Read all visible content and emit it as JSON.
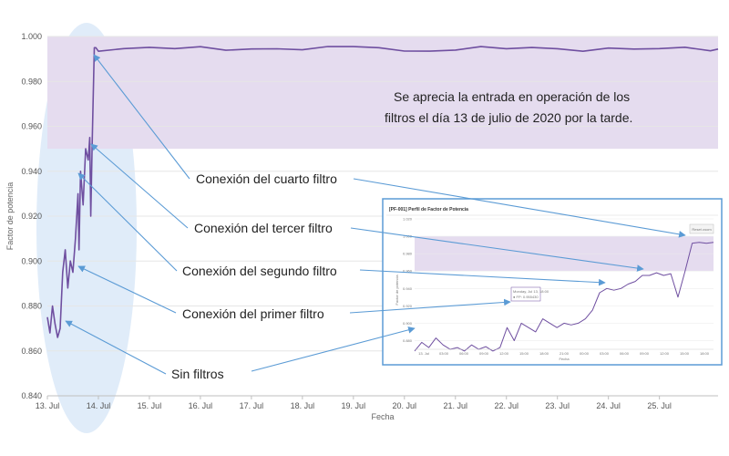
{
  "chart_data": [
    {
      "type": "line",
      "title": "",
      "xlabel": "Fecha",
      "ylabel": "Factor de potencia",
      "xlim": [
        13.0,
        26.15
      ],
      "ylim": [
        0.84,
        1.0
      ],
      "grid": true,
      "x_ticks": [
        13,
        14,
        15,
        16,
        17,
        18,
        19,
        20,
        21,
        22,
        23,
        24,
        25
      ],
      "x_tick_labels": [
        "13. Jul",
        "14. Jul",
        "15. Jul",
        "16. Jul",
        "17. Jul",
        "18. Jul",
        "19. Jul",
        "20. Jul",
        "21. Jul",
        "22. Jul",
        "23. Jul",
        "24. Jul",
        "25. Jul"
      ],
      "y_ticks": [
        0.84,
        0.86,
        0.88,
        0.9,
        0.92,
        0.94,
        0.96,
        0.98,
        1.0
      ],
      "y_tick_labels": [
        "0.840",
        "0.860",
        "0.880",
        "0.900",
        "0.920",
        "0.940",
        "0.960",
        "0.980",
        "1.000"
      ],
      "band": {
        "from": 0.95,
        "to": 1.0,
        "color": "#e5dcef"
      },
      "line_color": "#6f4fa0",
      "series": [
        {
          "x": [
            13.0,
            13.05,
            13.1,
            13.15,
            13.2,
            13.25,
            13.3,
            13.35,
            13.4,
            13.45,
            13.5,
            13.55,
            13.6,
            13.62,
            13.65,
            13.7,
            13.75,
            13.8,
            13.83,
            13.85,
            13.88,
            13.92,
            13.95,
            14.0,
            14.5,
            15.0,
            15.5,
            16.0,
            16.5,
            17.0,
            17.5,
            18.0,
            18.5,
            19.0,
            19.5,
            20.0,
            20.5,
            21.0,
            21.5,
            22.0,
            22.5,
            23.0,
            23.5,
            24.0,
            24.5,
            25.0,
            25.5,
            26.0,
            26.15
          ],
          "y": [
            0.875,
            0.868,
            0.88,
            0.872,
            0.866,
            0.87,
            0.895,
            0.905,
            0.888,
            0.9,
            0.895,
            0.91,
            0.93,
            0.905,
            0.94,
            0.925,
            0.95,
            0.945,
            0.955,
            0.92,
            0.955,
            0.995,
            0.995,
            0.994,
            0.995,
            0.995,
            0.994,
            0.995,
            0.994,
            0.995,
            0.995,
            0.994,
            0.995,
            0.995,
            0.995,
            0.994,
            0.994,
            0.994,
            0.995,
            0.994,
            0.995,
            0.995,
            0.994,
            0.995,
            0.994,
            0.994,
            0.995,
            0.994,
            0.995
          ]
        }
      ]
    },
    {
      "type": "line",
      "title": "[PF-001] Perfil de Factor de Potencia",
      "band_color": "#e5dcef",
      "line_color": "#6f4fa0",
      "series": [
        {
          "x": [
            0,
            0.5,
            1,
            1.5,
            2,
            2.5,
            3,
            3.5,
            4,
            4.5,
            5,
            5.5,
            6,
            6.5,
            7,
            7.5,
            8,
            8.5,
            9,
            9.5,
            10,
            10.5,
            11,
            11.5,
            12,
            12.5,
            13,
            13.5,
            14,
            14.5,
            15,
            15.5,
            16,
            16.5,
            17,
            17.5,
            18,
            18.5,
            19,
            19.5,
            20,
            20.5,
            21
          ],
          "y": [
            0.868,
            0.878,
            0.872,
            0.883,
            0.875,
            0.87,
            0.872,
            0.868,
            0.875,
            0.87,
            0.873,
            0.868,
            0.872,
            0.895,
            0.88,
            0.9,
            0.895,
            0.89,
            0.905,
            0.9,
            0.895,
            0.9,
            0.898,
            0.9,
            0.905,
            0.915,
            0.935,
            0.94,
            0.938,
            0.94,
            0.945,
            0.948,
            0.955,
            0.955,
            0.958,
            0.955,
            0.957,
            0.93,
            0.96,
            0.992,
            0.993,
            0.992,
            0.993
          ]
        }
      ]
    }
  ],
  "annotations": {
    "note_line1": "Se aprecia la entrada en operación de los",
    "note_line2": "filtros el día 13 de julio de 2020 por la tarde.",
    "cuarto": "Conexión del cuarto filtro",
    "tercer": "Conexión del tercer filtro",
    "segundo": "Conexión del segundo filtro",
    "primer": "Conexión del primer filtro",
    "sin": "Sin filtros"
  },
  "inset": {
    "reset_label": "Reset zoom",
    "tooltip_line1": "Monday, Jul 13, 18:00",
    "tooltip_line2": "● FP: 0.955430",
    "xlabel": "Fecha",
    "ylabel": "Factor de potencia",
    "x_tick_labels": [
      "13. Jul",
      "03:00",
      "06:00",
      "09:00",
      "12:00",
      "15:00",
      "18:00",
      "21:00",
      "00:00",
      "03:00",
      "06:00",
      "09:00",
      "12:00",
      "15:00",
      "18:00"
    ],
    "y_tick_labels": [
      "0.880",
      "0.900",
      "0.920",
      "0.940",
      "0.960",
      "0.980",
      "1.000",
      "1.020"
    ]
  },
  "colors": {
    "line": "#6f4fa0",
    "band": "#e5dcef",
    "highlight": "#d6e6f7",
    "arrow": "#5b9bd5",
    "inset_border": "#5b9bd5"
  }
}
